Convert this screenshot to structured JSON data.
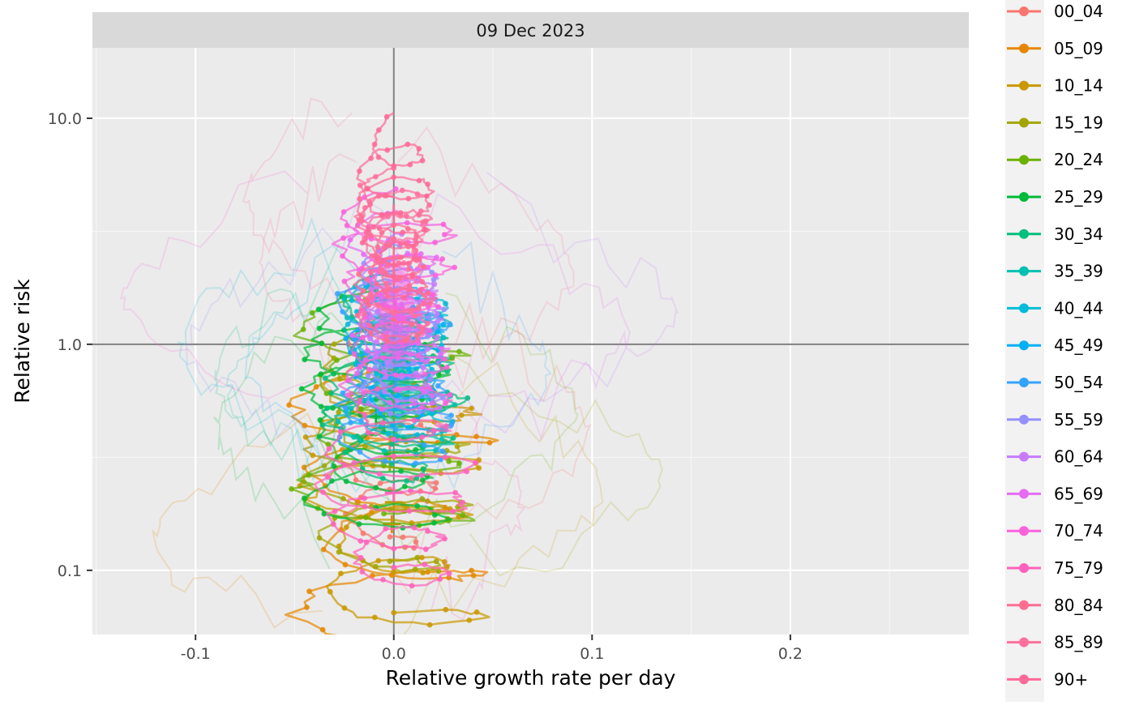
{
  "chart_data": {
    "type": "line",
    "title": "",
    "facet_label": "09 Dec 2023",
    "xlabel": "Relative growth rate per day",
    "ylabel": "Relative risk",
    "x_scale": "linear",
    "y_scale": "log10",
    "xlim": [
      -0.152,
      0.29
    ],
    "ylim": [
      0.052,
      20.5
    ],
    "x_ticks": [
      -0.1,
      0.0,
      0.1,
      0.2
    ],
    "x_tick_labels": [
      "-0.1",
      "0.0",
      "0.1",
      "0.2"
    ],
    "y_ticks": [
      0.1,
      1.0,
      10.0
    ],
    "y_tick_labels": [
      "0.1",
      "1.0",
      "10.0"
    ],
    "grid": true,
    "reference_lines": {
      "x": 0,
      "y": 1
    },
    "legend_position": "right",
    "series": [
      {
        "name": "00_04",
        "color": "#F8766D",
        "current": [
          -0.002,
          0.36
        ],
        "ry": 0.62,
        "rx": 0.025,
        "ridge": false
      },
      {
        "name": "05_09",
        "color": "#E58700",
        "current": [
          -0.001,
          0.16
        ],
        "ry": 0.75,
        "rx": 0.052,
        "ridge": false
      },
      {
        "name": "10_14",
        "color": "#C99800",
        "current": [
          0.0,
          0.2
        ],
        "ry": 0.7,
        "rx": 0.05,
        "ridge": false
      },
      {
        "name": "15_19",
        "color": "#A3A500",
        "current": [
          -0.002,
          0.3
        ],
        "ry": 0.65,
        "rx": 0.045,
        "ridge": false
      },
      {
        "name": "20_24",
        "color": "#6BB100",
        "current": [
          -0.005,
          0.45
        ],
        "ry": 0.6,
        "rx": 0.045,
        "ridge": false
      },
      {
        "name": "25_29",
        "color": "#00BA38",
        "current": [
          -0.009,
          0.48
        ],
        "ry": 0.6,
        "rx": 0.04,
        "ridge": false
      },
      {
        "name": "30_34",
        "color": "#00BF7D",
        "current": [
          -0.001,
          0.62
        ],
        "ry": 0.5,
        "rx": 0.035,
        "ridge": true
      },
      {
        "name": "35_39",
        "color": "#00C0AF",
        "current": [
          0.001,
          0.75
        ],
        "ry": 0.45,
        "rx": 0.03,
        "ridge": true
      },
      {
        "name": "40_44",
        "color": "#00BCD8",
        "current": [
          0.002,
          0.85
        ],
        "ry": 0.4,
        "rx": 0.028,
        "ridge": false
      },
      {
        "name": "45_49",
        "color": "#00B0F6",
        "current": [
          0.002,
          0.95
        ],
        "ry": 0.4,
        "rx": 0.025,
        "ridge": false
      },
      {
        "name": "50_54",
        "color": "#35A2FF",
        "current": [
          0.001,
          0.7
        ],
        "ry": 0.45,
        "rx": 0.03,
        "ridge": false
      },
      {
        "name": "55_59",
        "color": "#9590FF",
        "current": [
          0.003,
          1.1
        ],
        "ry": 0.4,
        "rx": 0.022,
        "ridge": false
      },
      {
        "name": "60_64",
        "color": "#C77CFF",
        "current": [
          0.004,
          1.25
        ],
        "ry": 0.4,
        "rx": 0.02,
        "ridge": false
      },
      {
        "name": "65_69",
        "color": "#E76BF3",
        "current": [
          0.002,
          1.3
        ],
        "ry": 0.5,
        "rx": 0.025,
        "ridge": true
      },
      {
        "name": "70_74",
        "color": "#FA62DB",
        "current": [
          0.001,
          1.45
        ],
        "ry": 0.55,
        "rx": 0.03,
        "ridge": true
      },
      {
        "name": "75_79",
        "color": "#FF62BC",
        "current": [
          0.0,
          0.22
        ],
        "ry": 0.5,
        "rx": 0.04,
        "ridge": false
      },
      {
        "name": "80_84",
        "color": "#FF6C91",
        "current": [
          0.0,
          2.0
        ],
        "ry": 0.35,
        "rx": 0.02,
        "ridge": false
      },
      {
        "name": "85_89",
        "color": "#FF6F9C",
        "current": [
          0.0,
          2.4
        ],
        "ry": 0.4,
        "rx": 0.018,
        "ridge": false
      },
      {
        "name": "90+",
        "color": "#FF6A98",
        "current": [
          0.0,
          3.8
        ],
        "ry": 0.45,
        "rx": 0.02,
        "ridge": false
      }
    ]
  }
}
